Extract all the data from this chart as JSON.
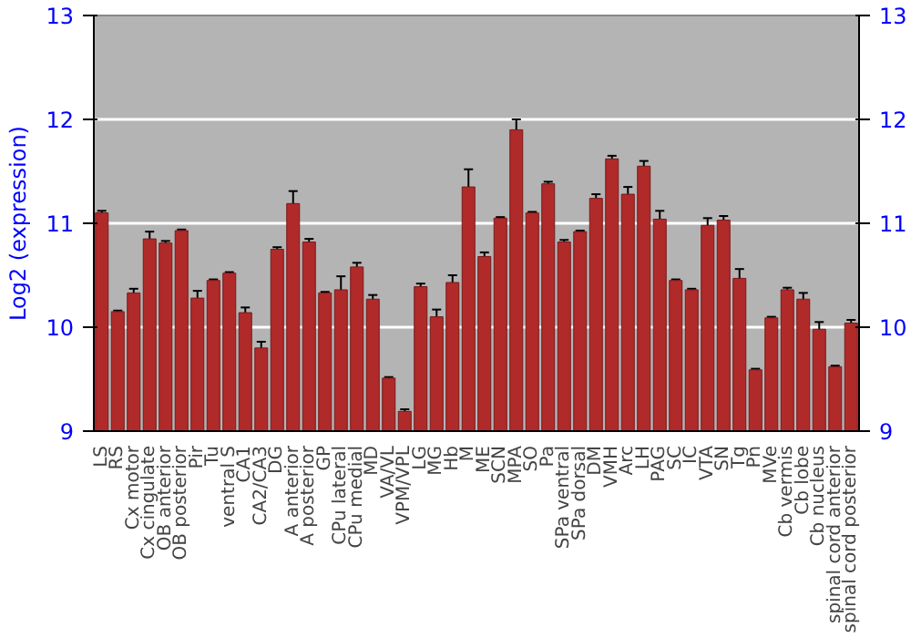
{
  "chart_data": {
    "type": "bar",
    "ylabel": "Log2 (expression)",
    "categories": [
      "LS",
      "RS",
      "Cx motor",
      "Cx cingulate",
      "OB anterior",
      "OB posterior",
      "Pir",
      "Tu",
      "ventral S",
      "CA1",
      "CA2/CA3",
      "DG",
      "A anterior",
      "A posterior",
      "GP",
      "CPu lateral",
      "CPu medial",
      "MD",
      "VA/VL",
      "VPM/VPL",
      "LG",
      "MG",
      "Hb",
      "M",
      "ME",
      "SCN",
      "MPA",
      "SO",
      "Pa",
      "SPa ventral",
      "SPa dorsal",
      "DM",
      "VMH",
      "Arc",
      "LH",
      "PAG",
      "SC",
      "IC",
      "VTA",
      "SN",
      "Tg",
      "Pn",
      "MVe",
      "Cb vermis",
      "Cb lobe",
      "Cb nucleus",
      "spinal cord anterior",
      "spinal cord posterior"
    ],
    "values": [
      11.1,
      10.15,
      10.33,
      10.85,
      10.81,
      10.93,
      10.28,
      10.45,
      10.52,
      10.14,
      9.8,
      10.75,
      11.19,
      10.82,
      10.33,
      10.36,
      10.58,
      10.27,
      9.51,
      9.19,
      10.39,
      10.1,
      10.43,
      11.35,
      10.68,
      11.05,
      11.9,
      11.1,
      11.38,
      10.82,
      10.92,
      11.24,
      11.62,
      11.28,
      11.55,
      11.04,
      10.45,
      10.36,
      10.98,
      11.03,
      10.47,
      9.59,
      10.09,
      10.36,
      10.27,
      9.98,
      9.62,
      10.04
    ],
    "errors": [
      0.02,
      0.01,
      0.04,
      0.07,
      0.02,
      0.01,
      0.07,
      0.01,
      0.01,
      0.05,
      0.06,
      0.02,
      0.12,
      0.03,
      0.01,
      0.13,
      0.04,
      0.04,
      0.01,
      0.02,
      0.03,
      0.07,
      0.07,
      0.17,
      0.04,
      0.01,
      0.1,
      0.01,
      0.02,
      0.02,
      0.01,
      0.04,
      0.03,
      0.07,
      0.05,
      0.08,
      0.01,
      0.01,
      0.07,
      0.04,
      0.09,
      0.01,
      0.01,
      0.02,
      0.06,
      0.07,
      0.01,
      0.03
    ],
    "color": "#b02a2a",
    "ylim": [
      9,
      13
    ],
    "yticks": [
      9,
      10,
      11,
      12,
      13
    ],
    "y2lim": [
      9,
      13
    ],
    "y2ticks": [
      9,
      10,
      11,
      12,
      13
    ],
    "grid": "y"
  }
}
